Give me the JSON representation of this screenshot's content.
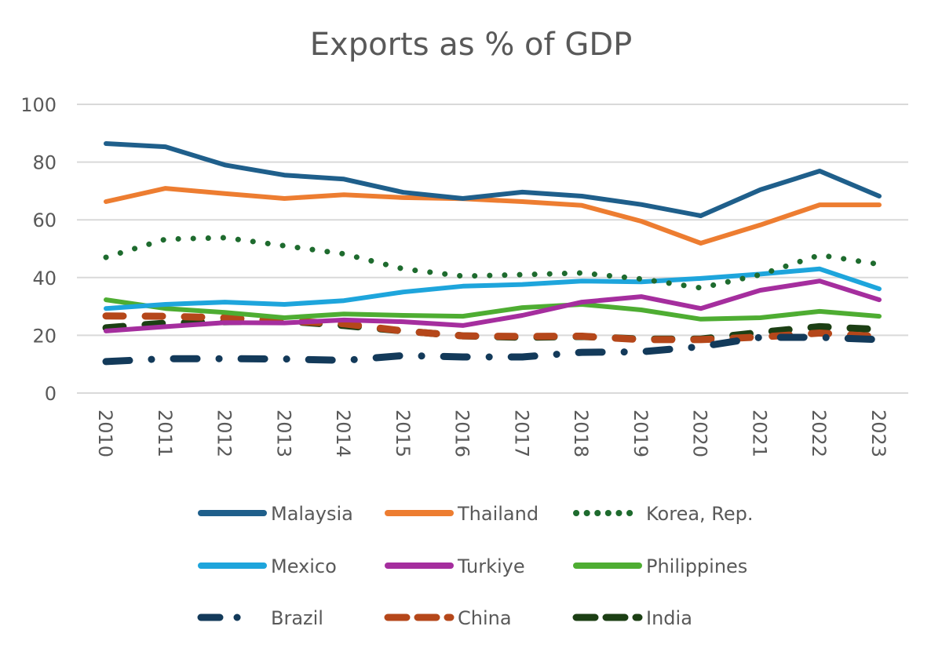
{
  "chart_data": {
    "type": "line",
    "title": "Exports as % of GDP",
    "xlabel": "",
    "ylabel": "",
    "ylim": [
      0,
      100
    ],
    "yticks": [
      "0",
      "20",
      "40",
      "60",
      "80",
      "100"
    ],
    "grid": true,
    "legend_position": "bottom",
    "x": [
      "2010",
      "2011",
      "2012",
      "2013",
      "2014",
      "2015",
      "2016",
      "2017",
      "2018",
      "2019",
      "2020",
      "2021",
      "2022",
      "2023"
    ],
    "series": [
      {
        "name": "Malaysia",
        "color": "#1f5f8b",
        "style": "solid",
        "values": [
          86.4,
          85.3,
          79.0,
          75.5,
          74.1,
          69.5,
          67.4,
          69.6,
          68.2,
          65.3,
          61.4,
          70.4,
          76.9,
          68.2
        ]
      },
      {
        "name": "Thailand",
        "color": "#ed7d31",
        "style": "solid",
        "values": [
          66.3,
          70.9,
          69.1,
          67.4,
          68.7,
          67.7,
          67.3,
          66.3,
          65.0,
          59.5,
          51.9,
          58.2,
          65.2,
          65.2
        ]
      },
      {
        "name": "Korea, Rep.",
        "color": "#1e6b2e",
        "style": "dotted",
        "values": [
          47.0,
          53.3,
          53.8,
          51.0,
          48.2,
          43.0,
          40.5,
          41.0,
          41.6,
          39.5,
          36.4,
          41.0,
          47.8,
          44.6
        ]
      },
      {
        "name": "Mexico",
        "color": "#1ea5dc",
        "style": "solid",
        "values": [
          29.3,
          30.7,
          31.5,
          30.7,
          32.0,
          35.0,
          37.0,
          37.6,
          38.8,
          38.5,
          39.7,
          41.2,
          43.0,
          36.1
        ]
      },
      {
        "name": "Turkiye",
        "color": "#a52e9e",
        "style": "solid",
        "values": [
          21.5,
          23.0,
          24.4,
          24.3,
          25.3,
          24.7,
          23.4,
          26.9,
          31.5,
          33.4,
          29.3,
          35.6,
          38.8,
          32.3
        ]
      },
      {
        "name": "Philippines",
        "color": "#4ead32",
        "style": "solid",
        "values": [
          32.3,
          29.3,
          27.9,
          26.1,
          27.4,
          26.9,
          26.6,
          29.6,
          30.7,
          28.8,
          25.6,
          26.1,
          28.3,
          26.6
        ]
      },
      {
        "name": "Brazil",
        "color": "#133a5a",
        "style": "dashdot",
        "values": [
          10.9,
          11.9,
          11.9,
          11.8,
          11.3,
          13.0,
          12.5,
          12.5,
          14.1,
          14.3,
          16.1,
          19.3,
          19.3,
          18.5
        ]
      },
      {
        "name": "China",
        "color": "#b5471a",
        "style": "dashed",
        "values": [
          26.7,
          26.6,
          26.1,
          25.0,
          24.0,
          21.5,
          19.8,
          19.6,
          19.7,
          18.5,
          18.5,
          19.4,
          20.8,
          19.5
        ]
      },
      {
        "name": "India",
        "color": "#1c3f14",
        "style": "dashed",
        "values": [
          22.6,
          24.2,
          24.7,
          25.0,
          23.4,
          21.5,
          19.8,
          19.3,
          19.6,
          18.7,
          18.7,
          21.0,
          23.0,
          22.0
        ]
      }
    ]
  }
}
